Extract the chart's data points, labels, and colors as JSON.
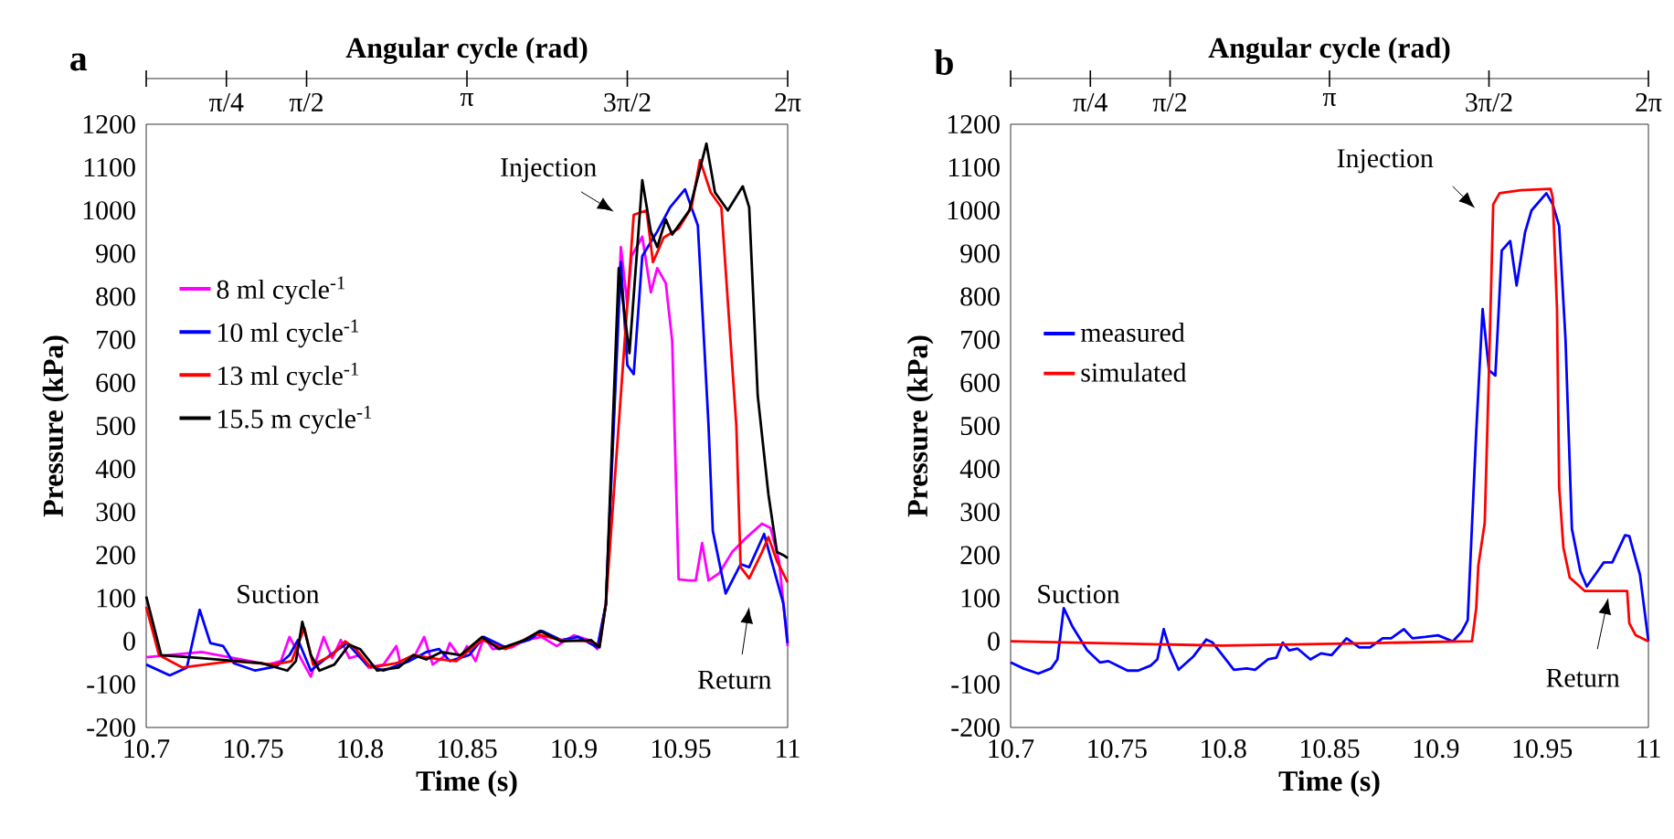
{
  "chart_data": [
    {
      "type": "line",
      "title": "a",
      "xlabel": "Time (s)",
      "ylabel": "Pressure (kPa)",
      "x2label": "Angular cycle (rad)",
      "xlim": [
        10.7,
        11
      ],
      "xticks": [
        10.7,
        10.75,
        10.8,
        10.85,
        10.9,
        10.95,
        11
      ],
      "ylim": [
        -200,
        1200
      ],
      "yticks": [
        -200,
        -100,
        0,
        100,
        200,
        300,
        400,
        500,
        600,
        700,
        800,
        900,
        1000,
        1100,
        1200
      ],
      "x2lim": [
        0,
        6.2832
      ],
      "x2ticks": [
        {
          "value": 0,
          "label": null
        },
        {
          "value": 0.7854,
          "label": "π/4"
        },
        {
          "value": 1.5708,
          "label": "π/2"
        },
        {
          "value": 3.1416,
          "label": "π"
        },
        {
          "value": 4.7124,
          "label": "3π/2"
        },
        {
          "value": 6.2832,
          "label": "2π"
        }
      ],
      "legend": "left",
      "annotations": [
        "Injection",
        "Suction",
        "Return"
      ],
      "series": [
        {
          "name": "8 ml cycle$^{-1}$",
          "color": "#ff00ff",
          "x": [
            10.7,
            10.726,
            10.757,
            10.763,
            10.767,
            10.773,
            10.777,
            10.783,
            10.787,
            10.791,
            10.795,
            10.8,
            10.804,
            10.811,
            10.817,
            10.819,
            10.825,
            10.83,
            10.834,
            10.84,
            10.842,
            10.847,
            10.85,
            10.854,
            10.858,
            10.862,
            10.871,
            10.877,
            10.885,
            10.892,
            10.9,
            10.907,
            10.911,
            10.915,
            10.922,
            10.925,
            10.927,
            10.932,
            10.936,
            10.939,
            10.943,
            10.946,
            10.949,
            10.954,
            10.957,
            10.96,
            10.963,
            10.968,
            10.974,
            10.981,
            10.988,
            10.992,
            10.996,
            11
          ],
          "values": [
            -37,
            -25,
            -54,
            -46,
            10,
            -46,
            -82,
            10,
            -39,
            3,
            -39,
            -32,
            -61,
            -54,
            -11,
            -54,
            -39,
            10,
            -54,
            -32,
            -4,
            -39,
            -11,
            -46,
            10,
            -18,
            -14,
            3,
            10,
            -11,
            14,
            3,
            -18,
            87,
            915,
            782,
            894,
            939,
            810,
            866,
            831,
            697,
            144,
            141,
            141,
            228,
            141,
            158,
            207,
            242,
            273,
            263,
            186,
            -11
          ]
        },
        {
          "name": "10 ml cycle$^{-1}$",
          "color": "#0000ff",
          "x": [
            10.7,
            10.711,
            10.719,
            10.725,
            10.73,
            10.736,
            10.741,
            10.751,
            10.761,
            10.767,
            10.771,
            10.777,
            10.786,
            10.794,
            10.803,
            10.811,
            10.823,
            10.831,
            10.837,
            10.842,
            10.851,
            10.858,
            10.868,
            10.879,
            10.885,
            10.894,
            10.902,
            10.911,
            10.915,
            10.922,
            10.925,
            10.928,
            10.932,
            10.939,
            10.945,
            10.952,
            10.958,
            10.963,
            10.965,
            10.971,
            10.978,
            10.982,
            10.989,
            10.998,
            11
          ],
          "values": [
            -54,
            -79,
            -61,
            73,
            -4,
            -11,
            -51,
            -68,
            -58,
            -32,
            3,
            -68,
            -32,
            -4,
            -54,
            -68,
            -46,
            -25,
            -18,
            -46,
            -32,
            10,
            -14,
            3,
            24,
            3,
            10,
            -14,
            87,
            880,
            641,
            620,
            894,
            951,
            1007,
            1049,
            965,
            500,
            256,
            111,
            179,
            172,
            249,
            87,
            -4
          ]
        },
        {
          "name": "13 ml cycle$^{-1}$",
          "color": "#ff0000",
          "x": [
            10.7,
            10.706,
            10.717,
            10.74,
            10.76,
            10.768,
            10.774,
            10.778,
            10.787,
            10.793,
            10.798,
            10.805,
            10.817,
            10.825,
            10.837,
            10.845,
            10.857,
            10.868,
            10.882,
            10.894,
            10.908,
            10.912,
            10.915,
            10.928,
            10.934,
            10.937,
            10.942,
            10.949,
            10.955,
            10.959,
            10.964,
            10.969,
            10.976,
            10.978,
            10.982,
            10.988,
            10.991,
            10.995,
            11
          ],
          "values": [
            80,
            -32,
            -61,
            -46,
            -54,
            -46,
            31,
            -54,
            -32,
            0,
            -18,
            -61,
            -51,
            -32,
            -42,
            -46,
            3,
            -18,
            17,
            3,
            0,
            -11,
            87,
            990,
            1000,
            880,
            937,
            958,
            1007,
            1117,
            1042,
            1007,
            500,
            172,
            146,
            207,
            242,
            186,
            137
          ]
        },
        {
          "name": "15.5 m cycle$^{-1}$",
          "color": "#000000",
          "x": [
            10.7,
            10.707,
            10.726,
            10.754,
            10.766,
            10.77,
            10.773,
            10.777,
            10.781,
            10.788,
            10.795,
            10.8,
            10.808,
            10.818,
            10.825,
            10.831,
            10.838,
            10.847,
            10.857,
            10.865,
            10.877,
            10.884,
            10.894,
            10.908,
            10.912,
            10.915,
            10.921,
            10.926,
            10.932,
            10.936,
            10.939,
            10.943,
            10.946,
            10.954,
            10.962,
            10.966,
            10.972,
            10.979,
            10.982,
            10.986,
            10.991,
            10.995,
            10.998,
            11
          ],
          "values": [
            104,
            -32,
            -39,
            -51,
            -68,
            -46,
            45,
            -32,
            -68,
            -54,
            -8,
            -18,
            -68,
            -61,
            -32,
            -42,
            -25,
            -32,
            10,
            -18,
            3,
            24,
            0,
            3,
            -14,
            87,
            866,
            669,
            1070,
            951,
            915,
            979,
            944,
            1000,
            1155,
            1042,
            1000,
            1056,
            1007,
            570,
            341,
            207,
            200,
            193
          ]
        }
      ]
    },
    {
      "type": "line",
      "title": "b",
      "xlabel": "Time (s)",
      "ylabel": "Pressure (kPa)",
      "x2label": "Angular cycle (rad)",
      "xlim": [
        10.7,
        11
      ],
      "xticks": [
        10.7,
        10.75,
        10.8,
        10.85,
        10.9,
        10.95,
        11
      ],
      "ylim": [
        -200,
        1200
      ],
      "yticks": [
        -200,
        -100,
        0,
        100,
        200,
        300,
        400,
        500,
        600,
        700,
        800,
        900,
        1000,
        1100,
        1200
      ],
      "x2lim": [
        0,
        6.2832
      ],
      "x2ticks": [
        {
          "value": 0,
          "label": null
        },
        {
          "value": 0.7854,
          "label": "π/4"
        },
        {
          "value": 1.5708,
          "label": "π/2"
        },
        {
          "value": 3.1416,
          "label": "π"
        },
        {
          "value": 4.7124,
          "label": "3π/2"
        },
        {
          "value": 6.2832,
          "label": "2π"
        }
      ],
      "legend": "left",
      "annotations": [
        "Injection",
        "Suction",
        "Return"
      ],
      "series": [
        {
          "name": "measured",
          "color": "#0000ff",
          "x": [
            10.7,
            10.706,
            10.713,
            10.719,
            10.722,
            10.725,
            10.729,
            10.736,
            10.742,
            10.746,
            10.75,
            10.755,
            10.76,
            10.766,
            10.769,
            10.772,
            10.775,
            10.779,
            10.786,
            10.792,
            10.795,
            10.799,
            10.805,
            10.811,
            10.815,
            10.821,
            10.825,
            10.828,
            10.831,
            10.835,
            10.841,
            10.846,
            10.851,
            10.858,
            10.864,
            10.869,
            10.875,
            10.879,
            10.885,
            10.889,
            10.895,
            10.901,
            10.908,
            10.912,
            10.915,
            10.919,
            10.922,
            10.925,
            10.928,
            10.931,
            10.935,
            10.938,
            10.942,
            10.945,
            10.952,
            10.955,
            10.958,
            10.961,
            10.964,
            10.968,
            10.971,
            10.976,
            10.979,
            10.983,
            10.989,
            10.991,
            10.996,
            11
          ],
          "values": [
            -49,
            -63,
            -75,
            -63,
            -42,
            77,
            35,
            -21,
            -49,
            -46,
            -56,
            -68,
            -68,
            -56,
            -42,
            28,
            -21,
            -66,
            -35,
            4,
            -3,
            -28,
            -66,
            -63,
            -66,
            -42,
            -38,
            -3,
            -21,
            -17,
            -42,
            -28,
            -32,
            7,
            -14,
            -14,
            7,
            7,
            28,
            7,
            10,
            14,
            0,
            21,
            49,
            486,
            771,
            629,
            617,
            907,
            929,
            826,
            950,
            1000,
            1040,
            1014,
            964,
            700,
            261,
            162,
            127,
            162,
            183,
            183,
            246,
            244,
            155,
            0
          ]
        },
        {
          "name": "simulated",
          "color": "#ff0000",
          "x": [
            10.7,
            10.8,
            10.872,
            10.917,
            10.919,
            10.92,
            10.923,
            10.925,
            10.927,
            10.93,
            10.94,
            10.954,
            10.955,
            10.957,
            10.958,
            10.96,
            10.963,
            10.97,
            10.99,
            10.991,
            10.994,
            11
          ],
          "values": [
            0,
            -10,
            -4,
            0,
            77,
            176,
            275,
            629,
            1014,
            1040,
            1047,
            1050,
            1029,
            771,
            359,
            218,
            148,
            117,
            117,
            42,
            14,
            0
          ]
        }
      ]
    }
  ]
}
